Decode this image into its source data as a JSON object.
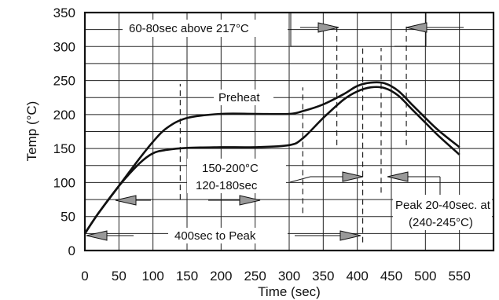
{
  "chart_data": {
    "type": "line",
    "title": "",
    "xlabel": "Time (sec)",
    "ylabel": "Temp (°C)",
    "xlim": [
      0,
      600
    ],
    "ylim": [
      0,
      350
    ],
    "x_ticks": [
      0,
      50,
      100,
      150,
      200,
      250,
      300,
      350,
      400,
      450,
      500,
      550
    ],
    "y_ticks": [
      0,
      50,
      100,
      150,
      200,
      250,
      300,
      350
    ],
    "x_grid_step": 50,
    "y_grid_step": 25,
    "grid": true,
    "legend": "none",
    "series": [
      {
        "points": [
          [
            0,
            25
          ],
          [
            20,
            55
          ],
          [
            50,
            95
          ],
          [
            80,
            135
          ],
          [
            100,
            160
          ],
          [
            120,
            180
          ],
          [
            150,
            195
          ],
          [
            200,
            201
          ],
          [
            250,
            201
          ],
          [
            300,
            201
          ],
          [
            320,
            205
          ],
          [
            350,
            215
          ],
          [
            380,
            230
          ],
          [
            400,
            242
          ],
          [
            420,
            247
          ],
          [
            440,
            246
          ],
          [
            460,
            235
          ],
          [
            480,
            215
          ],
          [
            500,
            195
          ],
          [
            520,
            176
          ],
          [
            550,
            152
          ]
        ]
      },
      {
        "points": [
          [
            0,
            25
          ],
          [
            20,
            55
          ],
          [
            50,
            95
          ],
          [
            80,
            128
          ],
          [
            100,
            143
          ],
          [
            120,
            148
          ],
          [
            150,
            151
          ],
          [
            200,
            152
          ],
          [
            250,
            152
          ],
          [
            300,
            155
          ],
          [
            320,
            165
          ],
          [
            350,
            195
          ],
          [
            380,
            222
          ],
          [
            400,
            234
          ],
          [
            420,
            240
          ],
          [
            440,
            239
          ],
          [
            460,
            228
          ],
          [
            480,
            208
          ],
          [
            500,
            188
          ],
          [
            520,
            168
          ],
          [
            550,
            141
          ]
        ]
      }
    ],
    "dashed_markers": [
      {
        "x": 140,
        "y_from": 75,
        "y_to": 245
      },
      {
        "x": 320,
        "y_from": 55,
        "y_to": 240
      },
      {
        "x": 370,
        "y_from": 155,
        "y_to": 330
      },
      {
        "x": 408,
        "y_from": 12,
        "y_to": 298
      },
      {
        "x": 435,
        "y_from": 85,
        "y_to": 298
      },
      {
        "x": 472,
        "y_from": 155,
        "y_to": 330
      }
    ],
    "annotations": [
      {
        "text": "60-80sec above 217°C"
      },
      {
        "text": "Preheat"
      },
      {
        "text": "150-200°C"
      },
      {
        "text": "120-180sec"
      },
      {
        "text": "400sec to Peak"
      },
      {
        "text": "Peak 20-40sec. at"
      },
      {
        "text": "(240-245°C)"
      }
    ]
  }
}
